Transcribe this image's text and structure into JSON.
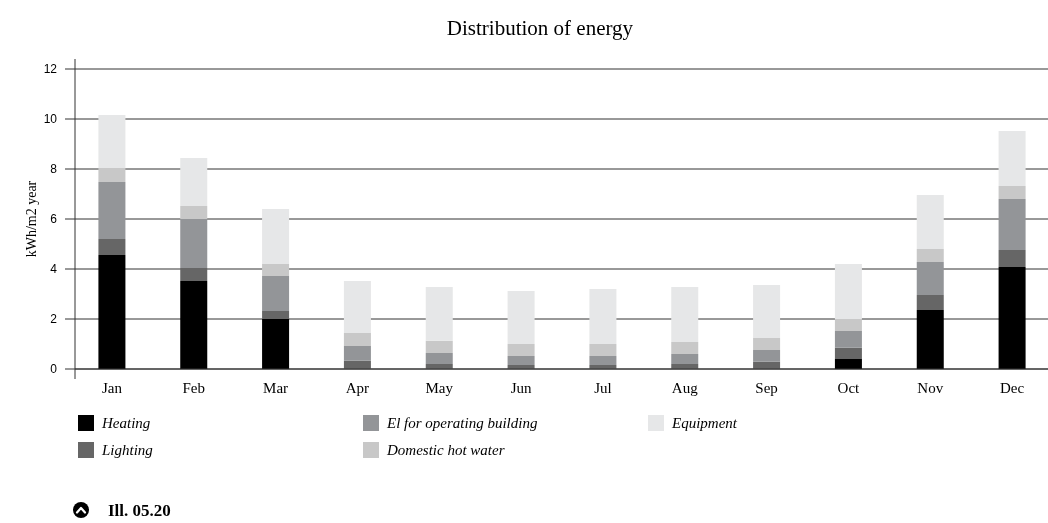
{
  "chart_data": {
    "type": "bar",
    "title": "Distribution of energy",
    "ylabel": "kWh/m2 year",
    "categories": [
      "Jan",
      "Feb",
      "Mar",
      "Apr",
      "May",
      "Jun",
      "Jul",
      "Aug",
      "Sep",
      "Oct",
      "Nov",
      "Dec"
    ],
    "stacked": true,
    "series": [
      {
        "name": "Heating",
        "color": "#000000",
        "values": [
          4.56,
          3.52,
          2.0,
          0,
          0,
          0,
          0,
          0,
          0,
          0.4,
          2.36,
          4.08
        ]
      },
      {
        "name": "Lighting",
        "color": "#666666",
        "values": [
          0.64,
          0.52,
          0.32,
          0.33,
          0.2,
          0.16,
          0.16,
          0.2,
          0.29,
          0.45,
          0.6,
          0.68
        ]
      },
      {
        "name": "El for operating building",
        "color": "#939598",
        "values": [
          2.28,
          1.96,
          1.4,
          0.59,
          0.44,
          0.36,
          0.36,
          0.4,
          0.47,
          0.67,
          1.32,
          2.04
        ]
      },
      {
        "name": "Domestic hot water",
        "color": "#c8c8c8",
        "values": [
          0.56,
          0.52,
          0.48,
          0.52,
          0.49,
          0.48,
          0.48,
          0.48,
          0.48,
          0.48,
          0.52,
          0.52
        ]
      },
      {
        "name": "Equipment",
        "color": "#e6e7e8",
        "values": [
          2.12,
          1.92,
          2.2,
          2.08,
          2.15,
          2.12,
          2.2,
          2.2,
          2.12,
          2.2,
          2.16,
          2.2
        ]
      }
    ],
    "ylim": [
      0,
      12
    ],
    "yticks": [
      0,
      2,
      4,
      6,
      8,
      10,
      12
    ],
    "grid": "y",
    "legend": "bottom",
    "annotations": [
      "Ill. 05.20"
    ]
  }
}
